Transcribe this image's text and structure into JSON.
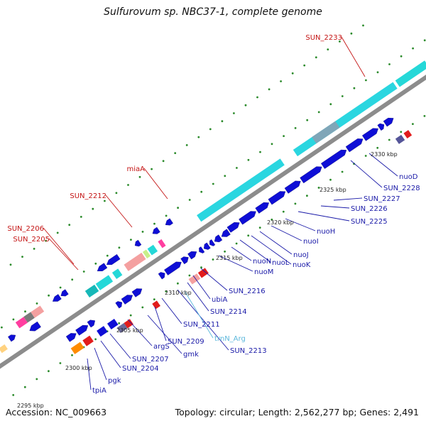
{
  "title": "Sulfurovum sp. NBC37-1, complete genome",
  "footer": {
    "accession": "Accession: NC_009663",
    "summary": "Topology: circular; Length: 2,562,277 bp; Genes: 2,491"
  },
  "colors": {
    "cds": "#0e0ed6",
    "trna": "#25d8d8",
    "backbone": "#909090",
    "label_blue": "#1a1aa8",
    "label_red": "#c41414",
    "label_cyan": "#5cb8dc",
    "tick": "#2a8a2a"
  },
  "scale_labels": [
    "2295 kbp",
    "2300 kbp",
    "2305 kbp",
    "2310 kbp",
    "2315 kbp",
    "2320 kbp",
    "2325 kbp",
    "2330 kbp"
  ],
  "gene_labels_lower": [
    {
      "text": "tpiA",
      "color": "blue"
    },
    {
      "text": "pgk",
      "color": "blue"
    },
    {
      "text": "SUN_2204",
      "color": "blue"
    },
    {
      "text": "SUN_2207",
      "color": "blue"
    },
    {
      "text": "argS",
      "color": "blue"
    },
    {
      "text": "gmk",
      "color": "blue"
    },
    {
      "text": "SUN_2209",
      "color": "blue"
    },
    {
      "text": "SUN_2211",
      "color": "blue"
    },
    {
      "text": "SUN_2213",
      "color": "blue"
    },
    {
      "text": "trnN_Arg",
      "color": "cyan"
    },
    {
      "text": "SUN_2214",
      "color": "blue"
    },
    {
      "text": "ubiA",
      "color": "blue"
    },
    {
      "text": "SUN_2216",
      "color": "blue"
    },
    {
      "text": "nuoM",
      "color": "blue"
    },
    {
      "text": "nuoN",
      "color": "blue"
    },
    {
      "text": "nuoL",
      "color": "blue"
    },
    {
      "text": "nuoK",
      "color": "blue"
    },
    {
      "text": "nuoJ",
      "color": "blue"
    },
    {
      "text": "nuoI",
      "color": "blue"
    },
    {
      "text": "nuoH",
      "color": "blue"
    },
    {
      "text": "SUN_2225",
      "color": "blue"
    },
    {
      "text": "SUN_2226",
      "color": "blue"
    },
    {
      "text": "SUN_2227",
      "color": "blue"
    },
    {
      "text": "SUN_2228",
      "color": "blue"
    },
    {
      "text": "nuoD",
      "color": "blue"
    }
  ],
  "gene_labels_upper": [
    {
      "text": "SUN_2205",
      "color": "red"
    },
    {
      "text": "SUN_2206",
      "color": "red"
    },
    {
      "text": "SUN_2212",
      "color": "red"
    },
    {
      "text": "miaA",
      "color": "red"
    },
    {
      "text": "SUN_2233",
      "color": "red"
    }
  ]
}
